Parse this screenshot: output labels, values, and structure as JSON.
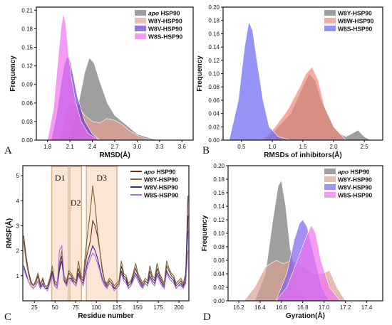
{
  "chart_data": [
    {
      "panel": "A",
      "type": "area",
      "xlabel": "RMSD(Å)",
      "ylabel": "Frequency",
      "xlim": [
        1.65,
        3.75
      ],
      "ylim": [
        0,
        0.215
      ],
      "xticks": [
        "1.8",
        "2.1",
        "2.4",
        "2.7",
        "3.0",
        "3.3",
        "3.6"
      ],
      "yticks": [
        "0.00",
        "0.03",
        "0.06",
        "0.09",
        "0.12",
        "0.15",
        "0.18",
        "0.21"
      ],
      "legend": "top-right",
      "series": [
        {
          "name_prefix": "apo",
          "name": " HSP90",
          "color": "#7f7f7f",
          "opacity": 0.75,
          "x": [
            1.9,
            2.1,
            2.2,
            2.3,
            2.36,
            2.42,
            2.5,
            2.6,
            2.7,
            2.8,
            2.9,
            3.0,
            3.1,
            3.2,
            3.3
          ],
          "y": [
            0,
            0.01,
            0.05,
            0.11,
            0.133,
            0.125,
            0.095,
            0.06,
            0.04,
            0.03,
            0.02,
            0.01,
            0.006,
            0.002,
            0
          ]
        },
        {
          "name_prefix": "",
          "name": "W8Y-HSP90",
          "color": "#e8a090",
          "opacity": 0.7,
          "x": [
            1.95,
            2.0,
            2.05,
            2.1,
            2.2,
            2.3,
            2.4,
            2.5,
            2.6,
            2.7,
            2.8,
            2.9,
            3.0,
            3.1,
            3.2
          ],
          "y": [
            0,
            0.02,
            0.05,
            0.06,
            0.055,
            0.04,
            0.03,
            0.028,
            0.035,
            0.032,
            0.025,
            0.015,
            0.008,
            0.003,
            0
          ]
        },
        {
          "name_prefix": "",
          "name": "W8V-HSP90",
          "color": "#6a3cd6",
          "opacity": 0.7,
          "x": [
            1.85,
            1.92,
            1.98,
            2.02,
            2.06,
            2.1,
            2.15,
            2.2,
            2.3,
            2.4,
            2.5
          ],
          "y": [
            0,
            0.04,
            0.09,
            0.12,
            0.135,
            0.13,
            0.1,
            0.07,
            0.03,
            0.01,
            0
          ]
        },
        {
          "name_prefix": "",
          "name": "W8S-HSP90",
          "color": "#f070f0",
          "opacity": 0.7,
          "x": [
            1.8,
            1.88,
            1.94,
            1.98,
            2.01,
            2.04,
            2.08,
            2.12,
            2.18,
            2.25,
            2.35,
            2.5
          ],
          "y": [
            0,
            0.05,
            0.13,
            0.18,
            0.205,
            0.19,
            0.14,
            0.1,
            0.06,
            0.03,
            0.01,
            0
          ]
        }
      ]
    },
    {
      "panel": "B",
      "type": "area",
      "xlabel": "RMSDs of inhibitors(Å)",
      "ylabel": "Frequency",
      "xlim": [
        0.2,
        2.8
      ],
      "ylim": [
        0,
        0.2
      ],
      "xticks": [
        "0.5",
        "1.0",
        "1.5",
        "2.0",
        "2.5"
      ],
      "yticks": [
        "0.00",
        "0.02",
        "0.04",
        "0.06",
        "0.08",
        "0.10",
        "0.12",
        "0.14",
        "0.16",
        "0.18",
        "0.20"
      ],
      "legend": "top-right",
      "series": [
        {
          "name_prefix": "",
          "name": "W8Y-HSP90",
          "color": "#7f7f7f",
          "opacity": 0.75,
          "x": [
            0.9,
            1.1,
            1.3,
            1.5,
            1.6,
            1.7,
            1.8,
            2.0,
            2.1,
            2.2,
            2.3,
            2.4,
            2.5,
            2.6
          ],
          "y": [
            0,
            0.02,
            0.04,
            0.08,
            0.1,
            0.09,
            0.06,
            0.02,
            0.01,
            0.005,
            0.01,
            0.015,
            0.005,
            0
          ]
        },
        {
          "name_prefix": "",
          "name": "W8W-HSP90",
          "color": "#f08878",
          "opacity": 0.7,
          "x": [
            0.85,
            1.05,
            1.25,
            1.45,
            1.55,
            1.65,
            1.75,
            1.85,
            2.0,
            2.2
          ],
          "y": [
            0,
            0.02,
            0.045,
            0.08,
            0.1,
            0.11,
            0.09,
            0.05,
            0.02,
            0
          ]
        },
        {
          "name_prefix": "",
          "name": "W8S-HSP90",
          "color": "#7070f0",
          "opacity": 0.75,
          "x": [
            0.3,
            0.45,
            0.55,
            0.62,
            0.68,
            0.75,
            0.85,
            0.95,
            1.1,
            1.3
          ],
          "y": [
            0,
            0.06,
            0.14,
            0.178,
            0.165,
            0.12,
            0.06,
            0.02,
            0.005,
            0
          ]
        }
      ]
    },
    {
      "panel": "C",
      "type": "line",
      "xlabel": "Residue number",
      "ylabel": "RMSF(Å)",
      "xlim": [
        11,
        212
      ],
      "ylim": [
        0,
        5.4
      ],
      "xticks": [
        "25",
        "50",
        "75",
        "100",
        "125",
        "150",
        "175",
        "200"
      ],
      "yticks": [
        "1",
        "2",
        "3",
        "4",
        "5"
      ],
      "regions": [
        {
          "label": "D1",
          "start": 46,
          "end": 66
        },
        {
          "label": "D2",
          "start": 68,
          "end": 82
        },
        {
          "label": "D3",
          "start": 88,
          "end": 125
        }
      ],
      "legend": "top-right",
      "series": [
        {
          "name_prefix": "apo",
          "name": " HSP90",
          "color": "#6b2f1f",
          "y": [
            2.6,
            1.8,
            1.2,
            0.8,
            0.6,
            0.7,
            1.0,
            0.6,
            0.9,
            0.6,
            0.5,
            0.8,
            1.2,
            0.7,
            0.6,
            1.3,
            1.8,
            0.9,
            0.7,
            1.1,
            1.0,
            0.8,
            0.7,
            1.3,
            0.9,
            0.8,
            1.6,
            2.0,
            2.4,
            3.2,
            3.0,
            2.6,
            2.0,
            1.2,
            0.8,
            0.6,
            0.8,
            0.7,
            0.5,
            0.6,
            0.7,
            1.4,
            1.0,
            0.9,
            0.6,
            0.7,
            1.0,
            1.3,
            1.0,
            0.8,
            0.6,
            0.8,
            0.7,
            1.2,
            0.9,
            0.8,
            1.3,
            1.0,
            0.8,
            0.6,
            1.4,
            1.2,
            1.0,
            0.9,
            0.6,
            0.7,
            0.8,
            0.6,
            1.0,
            4.2
          ]
        },
        {
          "name_prefix": "",
          "name": "W8Y-HSP90",
          "color": "#7a6a3a",
          "y": [
            2.4,
            1.6,
            1.1,
            0.7,
            0.6,
            0.8,
            1.1,
            0.7,
            0.8,
            0.6,
            0.6,
            0.9,
            1.4,
            0.8,
            0.7,
            1.5,
            2.0,
            1.0,
            0.8,
            1.2,
            1.1,
            0.9,
            0.8,
            1.6,
            1.0,
            0.9,
            2.0,
            2.8,
            3.6,
            4.6,
            3.8,
            2.8,
            2.0,
            1.3,
            0.8,
            0.7,
            0.9,
            0.8,
            0.6,
            0.7,
            0.8,
            1.6,
            1.1,
            1.0,
            0.7,
            0.8,
            1.1,
            1.5,
            1.1,
            0.9,
            0.7,
            0.9,
            0.8,
            1.4,
            1.0,
            0.9,
            1.5,
            1.1,
            0.9,
            0.7,
            1.6,
            1.3,
            1.1,
            1.0,
            0.7,
            0.8,
            0.9,
            0.7,
            1.1,
            2.8
          ]
        },
        {
          "name_prefix": "",
          "name": "W8V-HSP90",
          "color": "#3b2a9a",
          "y": [
            1.4,
            1.1,
            0.8,
            0.6,
            0.5,
            0.6,
            0.8,
            0.5,
            0.7,
            0.5,
            0.5,
            0.7,
            1.1,
            0.6,
            0.5,
            1.2,
            1.6,
            0.8,
            0.6,
            0.9,
            0.9,
            0.7,
            0.6,
            1.1,
            0.8,
            0.7,
            1.2,
            1.6,
            1.9,
            2.2,
            2.0,
            1.7,
            1.3,
            0.9,
            0.7,
            0.5,
            0.7,
            0.6,
            0.5,
            0.5,
            0.6,
            1.2,
            0.9,
            0.8,
            0.5,
            0.6,
            0.9,
            1.1,
            0.9,
            0.7,
            0.5,
            0.7,
            0.6,
            1.0,
            0.8,
            0.7,
            1.1,
            0.9,
            0.7,
            0.5,
            1.2,
            1.0,
            0.9,
            0.8,
            0.5,
            0.6,
            0.7,
            0.5,
            0.8,
            3.4
          ]
        },
        {
          "name_prefix": "",
          "name": "W8S-HSP90",
          "color": "#b070e0",
          "y": [
            1.3,
            1.0,
            0.8,
            0.6,
            0.5,
            0.6,
            0.8,
            0.5,
            0.6,
            0.5,
            0.4,
            0.7,
            1.0,
            0.6,
            0.5,
            2.0,
            2.2,
            0.9,
            0.6,
            0.9,
            0.8,
            0.7,
            0.6,
            1.0,
            0.8,
            0.6,
            1.1,
            1.4,
            1.7,
            1.9,
            1.8,
            1.5,
            1.2,
            0.8,
            0.6,
            0.5,
            0.7,
            0.6,
            0.4,
            0.5,
            0.6,
            1.1,
            0.8,
            0.7,
            0.5,
            0.6,
            0.8,
            1.0,
            0.8,
            0.6,
            0.5,
            0.7,
            0.6,
            0.9,
            0.7,
            0.6,
            1.0,
            0.8,
            0.6,
            0.5,
            1.1,
            0.9,
            0.8,
            0.7,
            0.5,
            0.6,
            0.6,
            0.5,
            0.7,
            2.0
          ]
        }
      ]
    },
    {
      "panel": "D",
      "type": "area",
      "xlabel": "Gyration(Å)",
      "ylabel": "Frequency",
      "xlim": [
        16.1,
        17.55
      ],
      "ylim": [
        0,
        0.2
      ],
      "xticks": [
        "16.2",
        "16.4",
        "16.6",
        "16.8",
        "17.0",
        "17.2",
        "17.4"
      ],
      "yticks": [
        "0.00",
        "0.02",
        "0.04",
        "0.06",
        "0.08",
        "0.10",
        "0.12",
        "0.14",
        "0.16",
        "0.18",
        "0.20"
      ],
      "legend": "top-right",
      "series": [
        {
          "name_prefix": "apo",
          "name": " HSP90",
          "color": "#7f7f7f",
          "opacity": 0.75,
          "x": [
            16.35,
            16.45,
            16.52,
            16.57,
            16.6,
            16.64,
            16.68,
            16.75,
            16.85
          ],
          "y": [
            0,
            0.04,
            0.12,
            0.17,
            0.178,
            0.14,
            0.08,
            0.02,
            0
          ]
        },
        {
          "name_prefix": "",
          "name": "W8Y-HSP90",
          "color": "#d8a090",
          "opacity": 0.7,
          "x": [
            16.25,
            16.35,
            16.45,
            16.55,
            16.62,
            16.7,
            16.8,
            16.9,
            16.98,
            17.05,
            17.12,
            17.2
          ],
          "y": [
            0,
            0.02,
            0.05,
            0.06,
            0.055,
            0.06,
            0.05,
            0.04,
            0.04,
            0.045,
            0.02,
            0
          ]
        },
        {
          "name_prefix": "",
          "name": "W8V-HSP90",
          "color": "#8060f0",
          "opacity": 0.7,
          "x": [
            16.55,
            16.65,
            16.72,
            16.77,
            16.8,
            16.84,
            16.9,
            16.98,
            17.05
          ],
          "y": [
            0,
            0.04,
            0.09,
            0.115,
            0.12,
            0.11,
            0.07,
            0.02,
            0
          ]
        },
        {
          "name_prefix": "",
          "name": "W8S-HSP90",
          "color": "#f070f0",
          "opacity": 0.7,
          "x": [
            16.55,
            16.65,
            16.75,
            16.82,
            16.88,
            16.92,
            16.97,
            17.05,
            17.15
          ],
          "y": [
            0,
            0.02,
            0.06,
            0.09,
            0.112,
            0.1,
            0.06,
            0.02,
            0
          ]
        }
      ]
    }
  ]
}
